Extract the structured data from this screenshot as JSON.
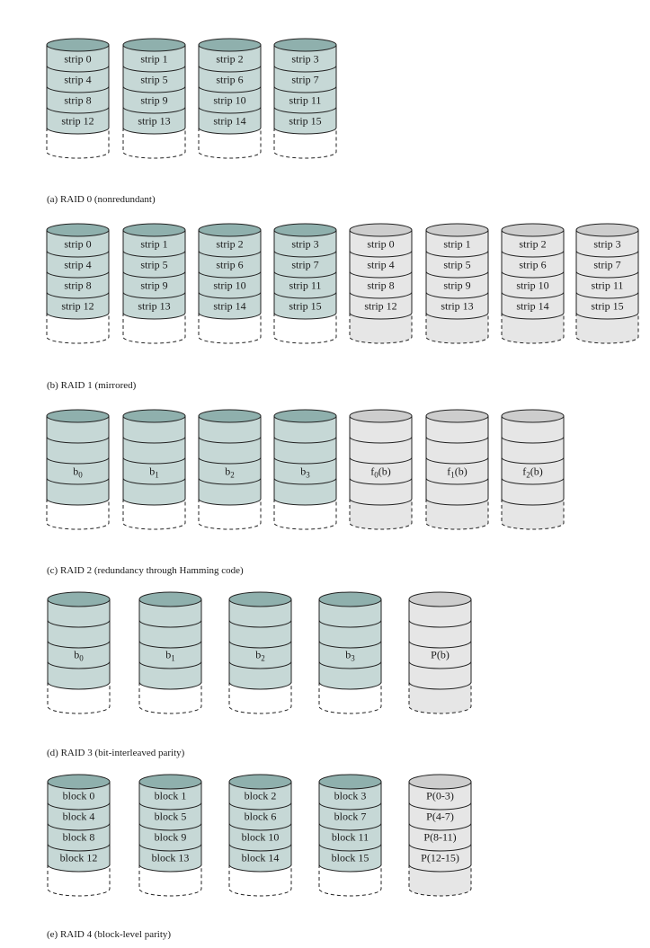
{
  "colors": {
    "data_disk_body": "#c6d8d6",
    "data_disk_top": "#8fb0ad",
    "redundant_disk_body": "#e6e6e6",
    "redundant_disk_top": "#cdcdcd",
    "stroke": "#222222"
  },
  "sections": [
    {
      "caption": "(a) RAID 0 (nonredundant)",
      "disks": [
        {
          "type": "data",
          "labels": [
            "strip 0",
            "strip 4",
            "strip 8",
            "strip 12"
          ]
        },
        {
          "type": "data",
          "labels": [
            "strip 1",
            "strip 5",
            "strip 9",
            "strip 13"
          ]
        },
        {
          "type": "data",
          "labels": [
            "strip 2",
            "strip 6",
            "strip 10",
            "strip 14"
          ]
        },
        {
          "type": "data",
          "labels": [
            "strip 3",
            "strip 7",
            "strip 11",
            "strip 15"
          ]
        }
      ]
    },
    {
      "caption": "(b) RAID 1 (mirrored)",
      "disks": [
        {
          "type": "data",
          "labels": [
            "strip 0",
            "strip 4",
            "strip 8",
            "strip 12"
          ]
        },
        {
          "type": "data",
          "labels": [
            "strip 1",
            "strip 5",
            "strip 9",
            "strip 13"
          ]
        },
        {
          "type": "data",
          "labels": [
            "strip 2",
            "strip 6",
            "strip 10",
            "strip 14"
          ]
        },
        {
          "type": "data",
          "labels": [
            "strip 3",
            "strip 7",
            "strip 11",
            "strip 15"
          ]
        },
        {
          "type": "redundant",
          "labels": [
            "strip 0",
            "strip 4",
            "strip 8",
            "strip 12"
          ]
        },
        {
          "type": "redundant",
          "labels": [
            "strip 1",
            "strip 5",
            "strip 9",
            "strip 13"
          ]
        },
        {
          "type": "redundant",
          "labels": [
            "strip 2",
            "strip 6",
            "strip 10",
            "strip 14"
          ]
        },
        {
          "type": "redundant",
          "labels": [
            "strip 3",
            "strip 7",
            "strip 11",
            "strip 15"
          ]
        }
      ]
    },
    {
      "caption": "(c) RAID 2 (redundancy through Hamming code)",
      "disks": [
        {
          "type": "data",
          "label": {
            "base": "b",
            "sub": "0",
            "tail": ""
          }
        },
        {
          "type": "data",
          "label": {
            "base": "b",
            "sub": "1",
            "tail": ""
          }
        },
        {
          "type": "data",
          "label": {
            "base": "b",
            "sub": "2",
            "tail": ""
          }
        },
        {
          "type": "data",
          "label": {
            "base": "b",
            "sub": "3",
            "tail": ""
          }
        },
        {
          "type": "redundant",
          "label": {
            "base": "f",
            "sub": "0",
            "tail": "(b)"
          }
        },
        {
          "type": "redundant",
          "label": {
            "base": "f",
            "sub": "1",
            "tail": "(b)"
          }
        },
        {
          "type": "redundant",
          "label": {
            "base": "f",
            "sub": "2",
            "tail": "(b)"
          }
        }
      ]
    },
    {
      "caption": "(d) RAID 3 (bit-interleaved parity)",
      "disks": [
        {
          "type": "data",
          "label": {
            "base": "b",
            "sub": "0",
            "tail": ""
          }
        },
        {
          "type": "data",
          "label": {
            "base": "b",
            "sub": "1",
            "tail": ""
          }
        },
        {
          "type": "data",
          "label": {
            "base": "b",
            "sub": "2",
            "tail": ""
          }
        },
        {
          "type": "data",
          "label": {
            "base": "b",
            "sub": "3",
            "tail": ""
          }
        },
        {
          "type": "redundant",
          "label": {
            "base": "P(b)",
            "sub": "",
            "tail": ""
          }
        }
      ]
    },
    {
      "caption": "(e) RAID 4 (block-level parity)",
      "disks": [
        {
          "type": "data",
          "labels": [
            "block 0",
            "block 4",
            "block 8",
            "block 12"
          ]
        },
        {
          "type": "data",
          "labels": [
            "block 1",
            "block 5",
            "block 9",
            "block 13"
          ]
        },
        {
          "type": "data",
          "labels": [
            "block 2",
            "block 6",
            "block 10",
            "block 14"
          ]
        },
        {
          "type": "data",
          "labels": [
            "block 3",
            "block 7",
            "block 11",
            "block 15"
          ]
        },
        {
          "type": "redundant",
          "labels": [
            "P(0-3)",
            "P(4-7)",
            "P(8-11)",
            "P(12-15)"
          ]
        }
      ]
    }
  ]
}
